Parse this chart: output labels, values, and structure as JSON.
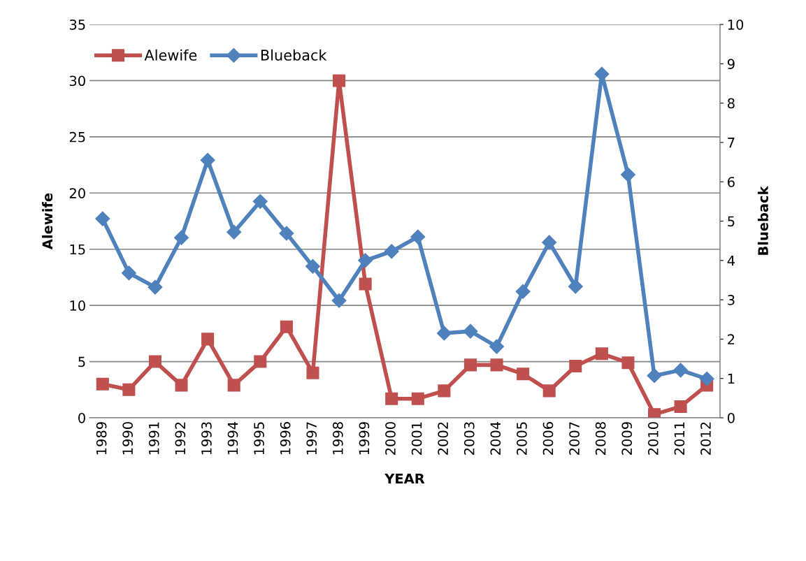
{
  "chart_data": {
    "type": "line",
    "xlabel": "YEAR",
    "ylabel": "Alewife",
    "y2label": "Blueback",
    "categories": [
      "1989",
      "1990",
      "1991",
      "1992",
      "1993",
      "1994",
      "1995",
      "1996",
      "1997",
      "1998",
      "1999",
      "2000",
      "2001",
      "2002",
      "2003",
      "2004",
      "2005",
      "2006",
      "2007",
      "2008",
      "2009",
      "2010",
      "2011",
      "2012"
    ],
    "series": [
      {
        "name": "Alewife",
        "color": "#c0504d",
        "marker": "square",
        "values": [
          3.0,
          2.5,
          5.0,
          2.9,
          7.0,
          2.9,
          5.0,
          8.1,
          4.0,
          30.0,
          11.9,
          1.7,
          1.7,
          2.4,
          4.7,
          4.7,
          3.9,
          2.4,
          4.6,
          5.7,
          4.9,
          0.3,
          1.0,
          2.9
        ]
      },
      {
        "name": "Blueback",
        "color": "#4f81bd",
        "marker": "diamond",
        "axis": "y2",
        "values": [
          5.06,
          3.68,
          3.32,
          4.58,
          6.55,
          4.72,
          5.5,
          4.69,
          3.85,
          2.98,
          4.0,
          4.23,
          4.6,
          2.15,
          2.2,
          1.81,
          3.21,
          4.46,
          3.34,
          8.74,
          6.18,
          1.07,
          1.21,
          0.99
        ]
      }
    ],
    "ylim": [
      0,
      35
    ],
    "yticks": [
      0,
      5,
      10,
      15,
      20,
      25,
      30,
      35
    ],
    "y2lim": [
      0,
      10
    ],
    "y2ticks": [
      0,
      1,
      2,
      3,
      4,
      5,
      6,
      7,
      8,
      9,
      10
    ],
    "grid": "y",
    "legend": "top left",
    "line_style": "solid"
  }
}
